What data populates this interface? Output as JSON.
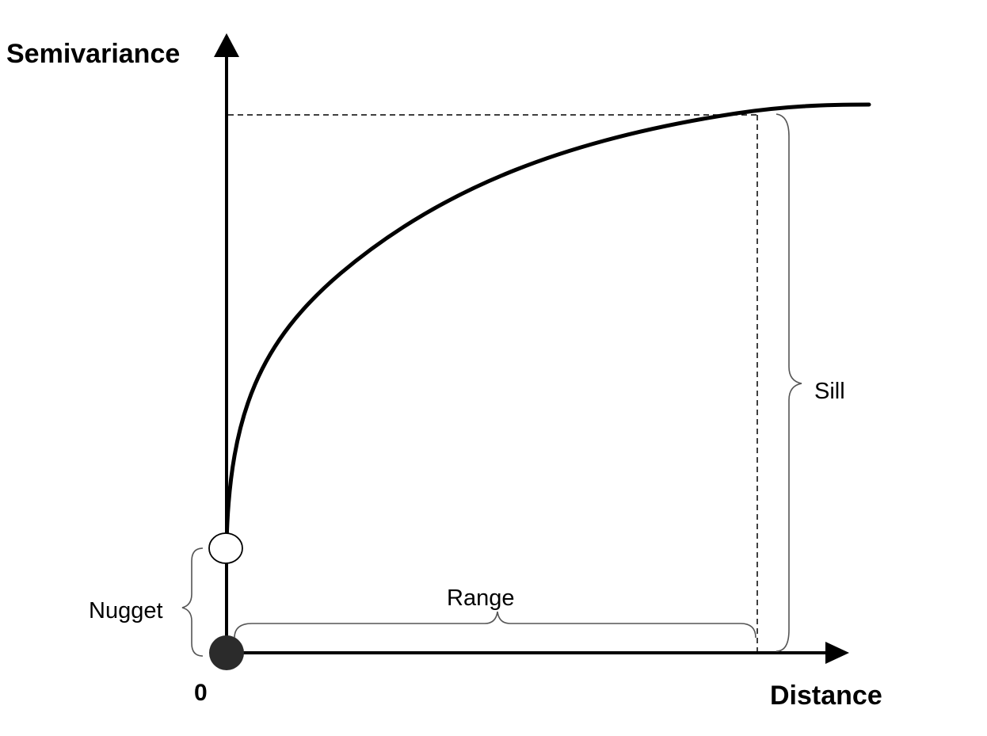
{
  "labels": {
    "y_axis": "Semivariance",
    "x_axis": "Distance",
    "origin": "0",
    "sill": "Sill",
    "range": "Range",
    "nugget": "Nugget"
  },
  "colors": {
    "line": "#000000",
    "brace": "#555555",
    "origin_dot": "#2b2b2b",
    "background": "#ffffff"
  }
}
